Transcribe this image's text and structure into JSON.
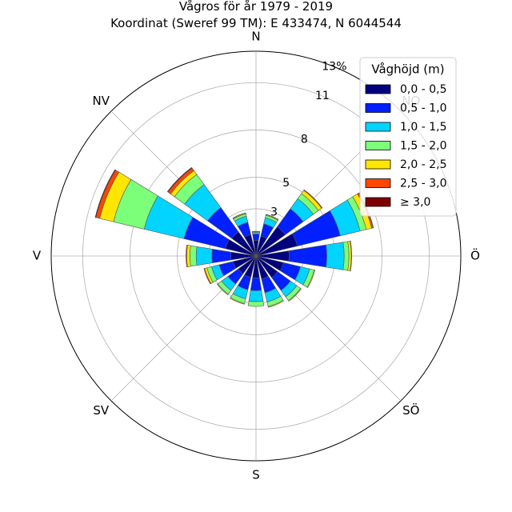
{
  "chart_data": {
    "type": "windrose",
    "title": "Vågros för år 1979 - 2019",
    "subtitle": "Koordinat (Sweref 99 TM): E 433474, N 6044544",
    "directions": [
      "N",
      "NO",
      "Ö",
      "SÖ",
      "S",
      "SV",
      "V",
      "NV"
    ],
    "radial_ticks": [
      3,
      5,
      8,
      11,
      13
    ],
    "radial_tick_labels": [
      "3",
      "5",
      "8",
      "11",
      "13%"
    ],
    "r_max": 13,
    "sector_angles_deg": [
      0,
      22.5,
      45,
      67.5,
      90,
      112.5,
      135,
      157.5,
      180,
      202.5,
      225,
      247.5,
      270,
      292.5,
      315,
      337.5
    ],
    "legend": {
      "title": "Våghöjd (m)",
      "placement": "top-right",
      "entries": [
        {
          "label": "0,0 - 0,5",
          "color": "#00007f"
        },
        {
          "label": "0,5 - 1,0",
          "color": "#0020ff"
        },
        {
          "label": "1,0 - 1,5",
          "color": "#00d4ff"
        },
        {
          "label": "1,5 - 2,0",
          "color": "#7cff79"
        },
        {
          "label": "2,0 - 2,5",
          "color": "#ffe600"
        },
        {
          "label": "2,5 - 3,0",
          "color": "#ff4600"
        },
        {
          "label": "≥ 3,0",
          "color": "#7f0000"
        }
      ]
    },
    "series": [
      {
        "name": "0,0 - 0,5",
        "values": [
          1.0,
          1.3,
          2.3,
          2.7,
          2.1,
          1.8,
          1.7,
          1.5,
          1.4,
          1.4,
          1.4,
          1.5,
          1.6,
          2.0,
          1.9,
          1.4
        ]
      },
      {
        "name": "0,5 - 1,0",
        "values": [
          0.4,
          0.8,
          1.4,
          2.8,
          2.4,
          1.1,
          1.0,
          0.9,
          0.8,
          0.8,
          0.8,
          0.9,
          1.2,
          2.7,
          1.9,
          0.8
        ]
      },
      {
        "name": "1,0 - 1,5",
        "values": [
          0.1,
          0.4,
          0.8,
          1.3,
          1.1,
          0.6,
          0.5,
          0.6,
          0.7,
          0.6,
          0.5,
          0.5,
          1.0,
          2.6,
          1.8,
          0.4
        ]
      },
      {
        "name": "1,5 - 2,0",
        "values": [
          0.05,
          0.15,
          0.4,
          0.4,
          0.3,
          0.3,
          0.3,
          0.3,
          0.3,
          0.3,
          0.3,
          0.3,
          0.4,
          2.0,
          0.8,
          0.15
        ]
      },
      {
        "name": "2,0 - 2,5",
        "values": [
          0.02,
          0.05,
          0.25,
          0.35,
          0.15,
          0.05,
          0.05,
          0.05,
          0.0,
          0.05,
          0.05,
          0.15,
          0.2,
          0.9,
          0.3,
          0.05
        ]
      },
      {
        "name": "2,5 - 3,0",
        "values": [
          0.0,
          0.02,
          0.05,
          0.1,
          0.03,
          0.0,
          0.0,
          0.0,
          0.0,
          0.0,
          0.0,
          0.05,
          0.05,
          0.25,
          0.2,
          0.02
        ]
      },
      {
        "name": "≥ 3,0",
        "values": [
          0.0,
          0.0,
          0.0,
          0.02,
          0.0,
          0.0,
          0.0,
          0.0,
          0.0,
          0.0,
          0.0,
          0.0,
          0.0,
          0.05,
          0.05,
          0.0
        ]
      }
    ]
  }
}
